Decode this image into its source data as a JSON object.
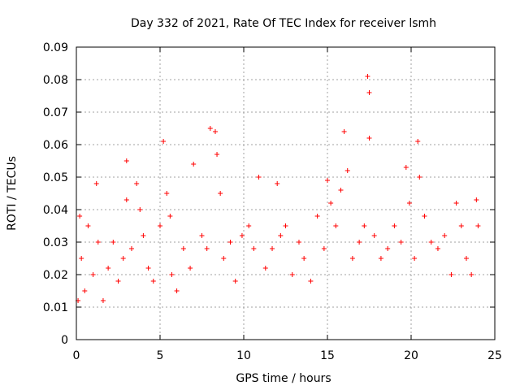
{
  "chart_data": {
    "type": "scatter",
    "title": "Day 332 of 2021, Rate Of TEC Index for receiver lsmh",
    "xlabel": "GPS time / hours",
    "ylabel": "ROTI / TECUs",
    "xlim": [
      0,
      25
    ],
    "ylim": [
      0,
      0.09
    ],
    "x_ticks": [
      "0",
      "5",
      "10",
      "15",
      "20",
      "25"
    ],
    "y_ticks": [
      "0",
      "0.01",
      "0.02",
      "0.03",
      "0.04",
      "0.05",
      "0.06",
      "0.07",
      "0.08",
      "0.09"
    ],
    "x_tick_values": [
      0,
      5,
      10,
      15,
      20,
      25
    ],
    "y_tick_values": [
      0,
      0.01,
      0.02,
      0.03,
      0.04,
      0.05,
      0.06,
      0.07,
      0.08,
      0.09
    ],
    "grid": true,
    "marker": "+",
    "color": "#ff0000",
    "series": [
      {
        "name": "",
        "x": [
          0.1,
          0.2,
          0.3,
          0.5,
          0.7,
          1.0,
          1.2,
          1.3,
          1.6,
          1.9,
          2.2,
          2.5,
          2.8,
          3.0,
          3.0,
          3.3,
          3.6,
          3.8,
          4.0,
          4.3,
          4.6,
          5.0,
          5.2,
          5.4,
          5.6,
          5.7,
          6.0,
          6.4,
          6.8,
          7.0,
          7.5,
          7.8,
          8.0,
          8.3,
          8.4,
          8.6,
          8.8,
          9.2,
          9.5,
          9.9,
          10.3,
          10.6,
          10.9,
          11.3,
          11.7,
          12.0,
          12.2,
          12.5,
          12.9,
          13.3,
          13.6,
          14.0,
          14.4,
          14.8,
          15.0,
          15.2,
          15.5,
          15.8,
          16.0,
          16.2,
          16.5,
          16.9,
          17.2,
          17.4,
          17.5,
          17.5,
          17.8,
          18.2,
          18.6,
          19.0,
          19.4,
          19.7,
          19.9,
          20.2,
          20.4,
          20.5,
          20.8,
          21.2,
          21.6,
          22.0,
          22.4,
          22.7,
          23.0,
          23.3,
          23.6,
          23.9,
          24.0
        ],
        "y": [
          0.012,
          0.038,
          0.025,
          0.015,
          0.035,
          0.02,
          0.048,
          0.03,
          0.012,
          0.022,
          0.03,
          0.018,
          0.025,
          0.055,
          0.043,
          0.028,
          0.048,
          0.04,
          0.032,
          0.022,
          0.018,
          0.035,
          0.061,
          0.045,
          0.038,
          0.02,
          0.015,
          0.028,
          0.022,
          0.054,
          0.032,
          0.028,
          0.065,
          0.064,
          0.057,
          0.045,
          0.025,
          0.03,
          0.018,
          0.032,
          0.035,
          0.028,
          0.05,
          0.022,
          0.028,
          0.048,
          0.032,
          0.035,
          0.02,
          0.03,
          0.025,
          0.018,
          0.038,
          0.028,
          0.049,
          0.042,
          0.035,
          0.046,
          0.064,
          0.052,
          0.025,
          0.03,
          0.035,
          0.081,
          0.076,
          0.062,
          0.032,
          0.025,
          0.028,
          0.035,
          0.03,
          0.053,
          0.042,
          0.025,
          0.061,
          0.05,
          0.038,
          0.03,
          0.028,
          0.032,
          0.02,
          0.042,
          0.035,
          0.025,
          0.02,
          0.043,
          0.035
        ]
      }
    ]
  }
}
